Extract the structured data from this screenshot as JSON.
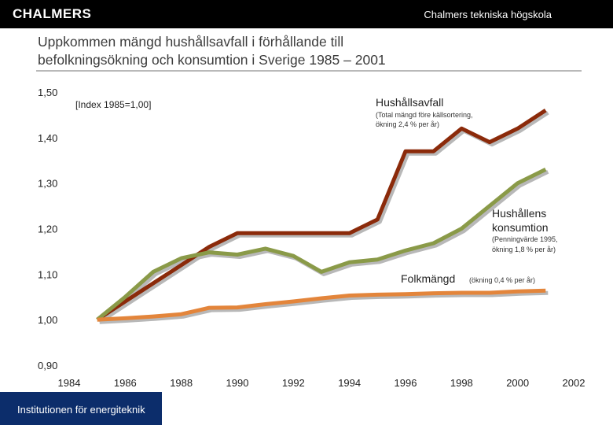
{
  "header": {
    "logo_text": "CHALMERS",
    "institution": "Chalmers tekniska högskola"
  },
  "slide": {
    "title_line1": "Uppkommen mängd hushållsavfall i förhållande till",
    "title_line2": "befolkningsökning och konsumtion i Sverige 1985 – 2001"
  },
  "footer": {
    "text": "Institutionen för energiteknik"
  },
  "colors": {
    "household_waste": "#8b2a0a",
    "consumption": "#8a9a48",
    "population": "#e3853b",
    "shadow": "#b8b8b8",
    "footer_bg": "#0c2d6b"
  },
  "chart_data": {
    "type": "line",
    "title": "",
    "xlabel": "",
    "ylabel": "",
    "index_note": "[Index 1985=1,00]",
    "xlim": [
      1984,
      2002
    ],
    "ylim": [
      0.9,
      1.5
    ],
    "x_ticks": [
      "1984",
      "1986",
      "1988",
      "1990",
      "1992",
      "1994",
      "1996",
      "1998",
      "2000",
      "2002"
    ],
    "y_ticks": [
      "0,90",
      "1,00",
      "1,10",
      "1,20",
      "1,30",
      "1,40",
      "1,50"
    ],
    "x": [
      1985,
      1986,
      1987,
      1988,
      1989,
      1990,
      1991,
      1992,
      1993,
      1994,
      1995,
      1996,
      1997,
      1998,
      1999,
      2000,
      2001
    ],
    "series": [
      {
        "name": "Hushållsavfall",
        "note": "(Total mängd före källsortering, ökning 2,4 % per år)",
        "color_key": "household_waste",
        "values": [
          1.0,
          1.04,
          1.08,
          1.12,
          1.16,
          1.19,
          1.19,
          1.19,
          1.19,
          1.19,
          1.22,
          1.37,
          1.37,
          1.42,
          1.39,
          1.42,
          1.46
        ]
      },
      {
        "name": "Hushållens konsumtion",
        "note": "(Penningvärde 1995, ökning 1,8 % per år)",
        "color_key": "consumption",
        "values": [
          1.0,
          1.05,
          1.105,
          1.135,
          1.148,
          1.143,
          1.156,
          1.14,
          1.105,
          1.126,
          1.132,
          1.152,
          1.168,
          1.2,
          1.25,
          1.3,
          1.33
        ]
      },
      {
        "name": "Folkmängd",
        "note": "(ökning 0,4 % per år)",
        "color_key": "population",
        "values": [
          1.0,
          1.003,
          1.007,
          1.012,
          1.026,
          1.027,
          1.034,
          1.04,
          1.047,
          1.053,
          1.055,
          1.056,
          1.058,
          1.059,
          1.059,
          1.062,
          1.064
        ]
      }
    ]
  }
}
